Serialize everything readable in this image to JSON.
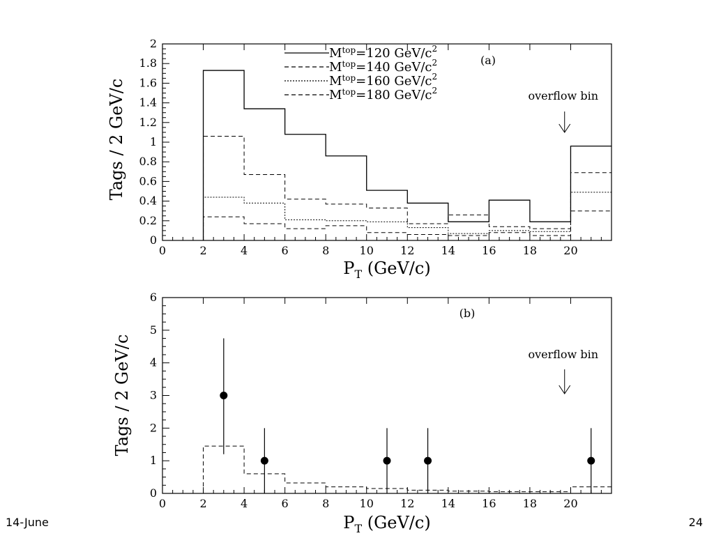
{
  "footer": {
    "left": "14-June",
    "right": "24"
  },
  "chart_data": [
    {
      "id": "a",
      "type": "step",
      "panel_label": "(a)",
      "xlabel": "P",
      "xlabel_sub": "T",
      "xlabel_unit": " (GeV/c)",
      "ylabel": "Tags / 2 GeV/c",
      "xlim": [
        0,
        22
      ],
      "ylim": [
        0,
        2
      ],
      "xticks": [
        0,
        2,
        4,
        6,
        8,
        10,
        12,
        14,
        16,
        18,
        20
      ],
      "yticks": [
        0,
        0.2,
        0.4,
        0.6,
        0.8,
        1,
        1.2,
        1.4,
        1.6,
        1.8,
        2
      ],
      "annotation": {
        "text": "overflow bin",
        "x": 21
      },
      "bin_edges": [
        2,
        4,
        6,
        8,
        10,
        12,
        14,
        16,
        18,
        20,
        22
      ],
      "series": [
        {
          "name": "M",
          "sub": "top",
          "suffix": "=120 GeV/c",
          "sup": "2",
          "style": "solid",
          "values": [
            1.73,
            1.34,
            1.08,
            0.86,
            0.51,
            0.38,
            0.19,
            0.41,
            0.19,
            0.96
          ]
        },
        {
          "name": "M",
          "sub": "top",
          "suffix": "=140 GeV/c",
          "sup": "2",
          "style": "dashed",
          "values": [
            1.06,
            0.67,
            0.42,
            0.37,
            0.33,
            0.17,
            0.26,
            0.14,
            0.12,
            0.69
          ]
        },
        {
          "name": "M",
          "sub": "top",
          "suffix": "=160 GeV/c",
          "sup": "2",
          "style": "dotted",
          "values": [
            0.44,
            0.38,
            0.21,
            0.2,
            0.19,
            0.13,
            0.07,
            0.1,
            0.09,
            0.49
          ]
        },
        {
          "name": "M",
          "sub": "top",
          "suffix": "=180 GeV/c",
          "sup": "2",
          "style": "dashed",
          "values": [
            0.24,
            0.17,
            0.12,
            0.15,
            0.08,
            0.06,
            0.05,
            0.08,
            0.05,
            0.3
          ]
        }
      ]
    },
    {
      "id": "b",
      "type": "scatter",
      "panel_label": "(b)",
      "xlabel": "P",
      "xlabel_sub": "T",
      "xlabel_unit": " (GeV/c)",
      "ylabel": "Tags / 2 GeV/c",
      "xlim": [
        0,
        22
      ],
      "ylim": [
        0,
        6
      ],
      "xticks": [
        0,
        2,
        4,
        6,
        8,
        10,
        12,
        14,
        16,
        18,
        20
      ],
      "yticks": [
        0,
        1,
        2,
        3,
        4,
        5,
        6
      ],
      "annotation": {
        "text": "overflow bin",
        "x": 21
      },
      "bin_edges": [
        2,
        4,
        6,
        8,
        10,
        12,
        14,
        16,
        18,
        20,
        22
      ],
      "histogram": {
        "style": "dashed",
        "values": [
          1.45,
          0.6,
          0.32,
          0.2,
          0.15,
          0.1,
          0.07,
          0.05,
          0.05,
          0.2
        ]
      },
      "points": [
        {
          "x": 3,
          "y": 3,
          "err_low": 1.2,
          "err_high": 4.75
        },
        {
          "x": 5,
          "y": 1,
          "err_low": 0,
          "err_high": 2.0
        },
        {
          "x": 11,
          "y": 1,
          "err_low": 0,
          "err_high": 2.0
        },
        {
          "x": 13,
          "y": 1,
          "err_low": 0,
          "err_high": 2.0
        },
        {
          "x": 21,
          "y": 1,
          "err_low": 0,
          "err_high": 2.0
        }
      ]
    }
  ]
}
